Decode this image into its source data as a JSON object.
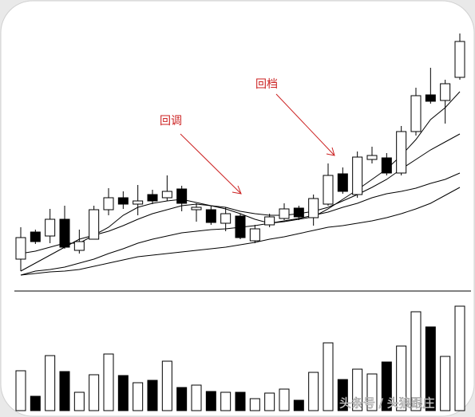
{
  "chart_data": {
    "type": "candlestick",
    "open": [
      35,
      69,
      64,
      85,
      46,
      60,
      97,
      112,
      104,
      116,
      112,
      123,
      97,
      97,
      80,
      89,
      58,
      78,
      86,
      99,
      87,
      104,
      142,
      116,
      160,
      162,
      143,
      195,
      241,
      234,
      263
    ],
    "high": [
      75,
      72,
      98,
      102,
      72,
      102,
      124,
      120,
      128,
      122,
      140,
      127,
      105,
      102,
      100,
      92,
      78,
      92,
      105,
      102,
      116,
      155,
      150,
      170,
      176,
      168,
      202,
      250,
      275,
      260,
      318
    ],
    "low": [
      20,
      54,
      55,
      48,
      42,
      60,
      90,
      98,
      90,
      104,
      108,
      95,
      82,
      78,
      70,
      60,
      55,
      75,
      84,
      84,
      77,
      102,
      117,
      112,
      155,
      140,
      140,
      190,
      230,
      205,
      260
    ],
    "close": [
      62,
      57,
      85,
      50,
      57,
      97,
      112,
      104,
      108,
      108,
      120,
      105,
      100,
      81,
      92,
      62,
      73,
      88,
      98,
      88,
      111,
      140,
      120,
      163,
      165,
      143,
      195,
      240,
      233,
      255,
      308
    ],
    "ylim": [
      0,
      330
    ],
    "up_color": "#ffffff",
    "down_color": "#000000",
    "moving_averages": [
      {
        "color": "#000000",
        "values": [
          42,
          45,
          50,
          55,
          55,
          65,
          75,
          90,
          100,
          105,
          108,
          110,
          106,
          102,
          98,
          92,
          85,
          80,
          82,
          85,
          88,
          98,
          110,
          122,
          135,
          148,
          165,
          185,
          210,
          225,
          245
        ]
      },
      {
        "color": "#000000",
        "values": [
          20,
          30,
          40,
          50,
          60,
          65,
          70,
          77,
          85,
          92,
          97,
          102,
          104,
          102,
          100,
          95,
          92,
          90,
          90,
          92,
          95,
          100,
          108,
          116,
          125,
          135,
          148,
          160,
          172,
          182,
          192
        ]
      },
      {
        "color": "#000000",
        "values": [
          15,
          20,
          22,
          25,
          30,
          35,
          42,
          48,
          55,
          60,
          64,
          68,
          70,
          72,
          73,
          75,
          77,
          80,
          83,
          86,
          90,
          94,
          100,
          105,
          112,
          117,
          120,
          124,
          130,
          135,
          143
        ]
      },
      {
        "color": "#000000",
        "values": [
          15,
          17,
          19,
          20,
          22,
          26,
          30,
          34,
          38,
          40,
          42,
          44,
          46,
          48,
          50,
          53,
          56,
          60,
          63,
          67,
          71,
          75,
          77,
          80,
          83,
          87,
          92,
          98,
          105,
          115,
          125
        ]
      }
    ],
    "volume": {
      "values": [
        50,
        18,
        69,
        49,
        23,
        45,
        71,
        44,
        35,
        38,
        62,
        29,
        32,
        24,
        23,
        23,
        15,
        22,
        27,
        13,
        48,
        85,
        39,
        52,
        46,
        61,
        81,
        124,
        105,
        68,
        131
      ],
      "ylim": [
        0,
        150
      ]
    },
    "annotations": [
      {
        "text": "回调",
        "color": "#cc2222"
      },
      {
        "text": "回档",
        "color": "#cc2222"
      }
    ]
  },
  "watermark": "头条号 / 头狼跟庄"
}
